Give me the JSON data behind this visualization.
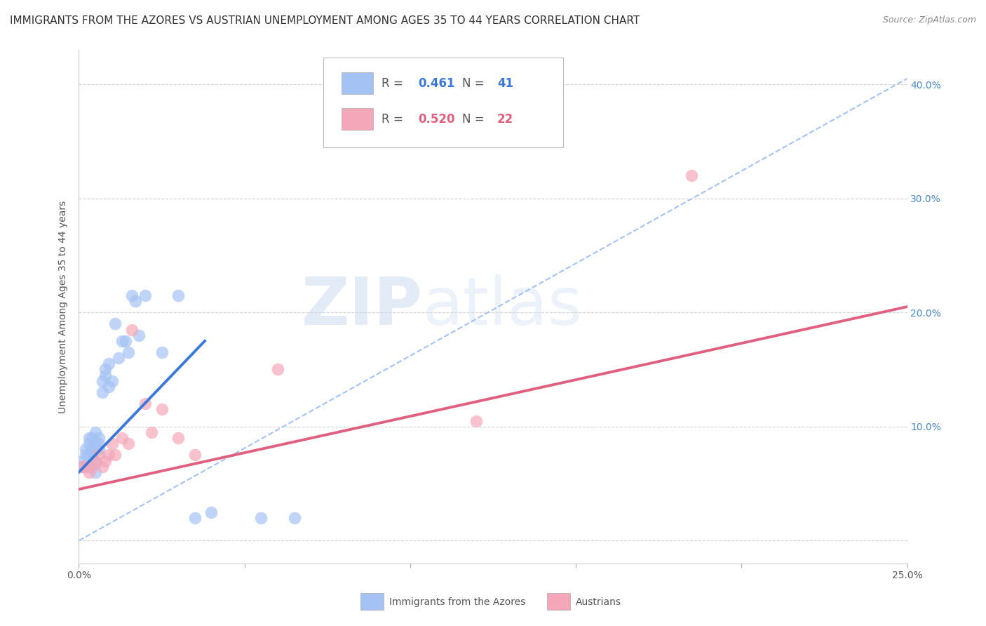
{
  "title": "IMMIGRANTS FROM THE AZORES VS AUSTRIAN UNEMPLOYMENT AMONG AGES 35 TO 44 YEARS CORRELATION CHART",
  "source": "Source: ZipAtlas.com",
  "ylabel": "Unemployment Among Ages 35 to 44 years",
  "xlim": [
    0.0,
    0.25
  ],
  "ylim": [
    -0.02,
    0.43
  ],
  "legend1_R": "0.461",
  "legend1_N": "41",
  "legend2_R": "0.520",
  "legend2_N": "22",
  "blue_color": "#a4c2f4",
  "pink_color": "#f4a7b9",
  "blue_line_color": "#3c78d8",
  "pink_line_color": "#e06080",
  "dashed_line_color": "#a4c2f4",
  "watermark_zip": "ZIP",
  "watermark_atlas": "atlas",
  "blue_scatter_x": [
    0.001,
    0.001,
    0.002,
    0.002,
    0.002,
    0.003,
    0.003,
    0.003,
    0.003,
    0.004,
    0.004,
    0.004,
    0.005,
    0.005,
    0.005,
    0.005,
    0.006,
    0.006,
    0.006,
    0.007,
    0.007,
    0.008,
    0.008,
    0.009,
    0.009,
    0.01,
    0.011,
    0.012,
    0.013,
    0.014,
    0.015,
    0.016,
    0.017,
    0.018,
    0.02,
    0.025,
    0.03,
    0.035,
    0.04,
    0.055,
    0.065
  ],
  "blue_scatter_y": [
    0.065,
    0.07,
    0.075,
    0.08,
    0.065,
    0.09,
    0.085,
    0.075,
    0.065,
    0.08,
    0.09,
    0.075,
    0.095,
    0.085,
    0.068,
    0.06,
    0.09,
    0.08,
    0.085,
    0.13,
    0.14,
    0.145,
    0.15,
    0.155,
    0.135,
    0.14,
    0.19,
    0.16,
    0.175,
    0.175,
    0.165,
    0.215,
    0.21,
    0.18,
    0.215,
    0.165,
    0.215,
    0.02,
    0.025,
    0.02,
    0.02
  ],
  "pink_scatter_x": [
    0.001,
    0.002,
    0.003,
    0.004,
    0.005,
    0.006,
    0.007,
    0.008,
    0.009,
    0.01,
    0.011,
    0.013,
    0.015,
    0.016,
    0.02,
    0.022,
    0.025,
    0.03,
    0.035,
    0.06,
    0.12,
    0.185
  ],
  "pink_scatter_y": [
    0.065,
    0.065,
    0.06,
    0.065,
    0.07,
    0.075,
    0.065,
    0.07,
    0.075,
    0.085,
    0.075,
    0.09,
    0.085,
    0.185,
    0.12,
    0.095,
    0.115,
    0.09,
    0.075,
    0.15,
    0.105,
    0.32
  ],
  "blue_line_x": [
    0.0,
    0.038
  ],
  "blue_line_y": [
    0.06,
    0.175
  ],
  "pink_line_x": [
    0.0,
    0.25
  ],
  "pink_line_y": [
    0.045,
    0.205
  ],
  "dashed_line_x": [
    0.0,
    0.25
  ],
  "dashed_line_y": [
    0.0,
    0.405
  ],
  "title_fontsize": 11,
  "source_fontsize": 9,
  "axis_label_fontsize": 10,
  "tick_fontsize": 10,
  "legend_fontsize": 12
}
